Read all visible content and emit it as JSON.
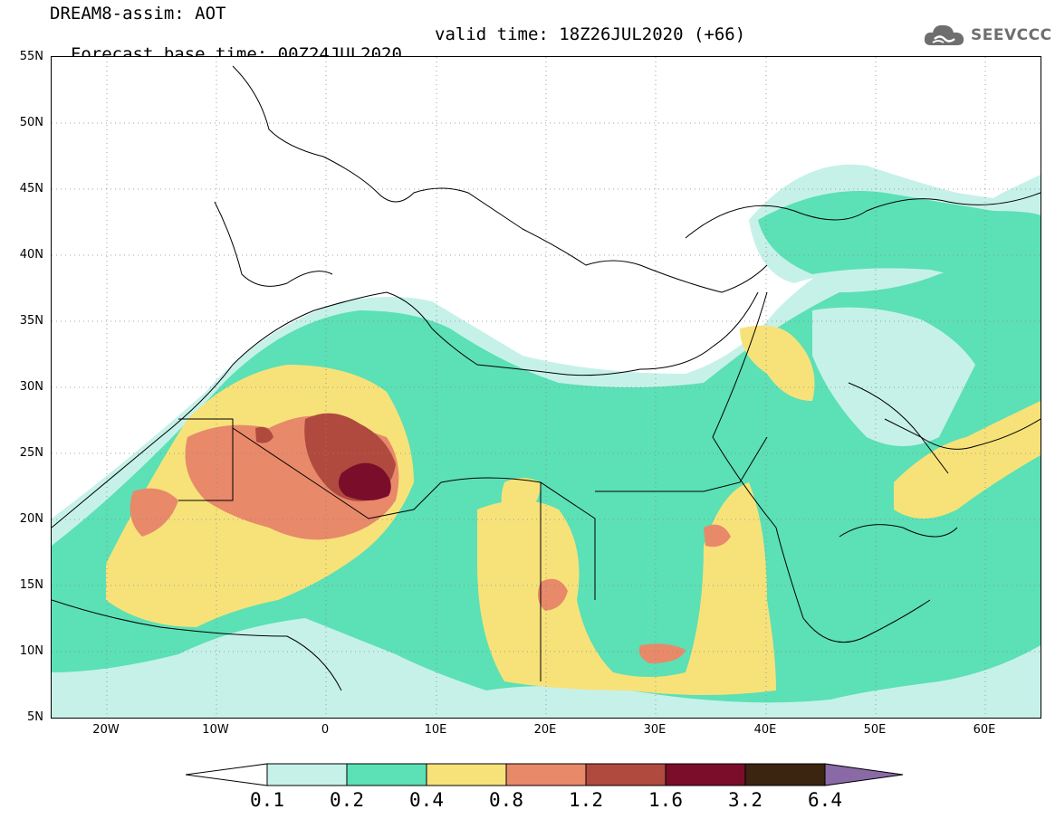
{
  "header": {
    "title_line1": "DREAM8-assim: AOT",
    "base_time": "Forecast base time: 00Z24JUL2020",
    "valid_time": "valid time: 18Z26JUL2020 (+66)",
    "logo_text": "SEEVCCC",
    "logo_icon": "cloud-icon"
  },
  "axes": {
    "lat_labels": [
      "55N",
      "50N",
      "45N",
      "40N",
      "35N",
      "30N",
      "25N",
      "20N",
      "15N",
      "10N",
      "5N"
    ],
    "lon_labels": [
      "20W",
      "10W",
      "0",
      "10E",
      "20E",
      "30E",
      "40E",
      "50E",
      "60E"
    ]
  },
  "colorbar": {
    "labels": [
      "0.1",
      "0.2",
      "0.4",
      "0.8",
      "1.2",
      "1.6",
      "3.2",
      "6.4"
    ],
    "colors": [
      "#ffffff",
      "#c6f1e9",
      "#5ce0b5",
      "#f7e27a",
      "#e8896a",
      "#b04a3f",
      "#7a0e2a",
      "#3b2410",
      "#8a6aa6"
    ]
  }
}
